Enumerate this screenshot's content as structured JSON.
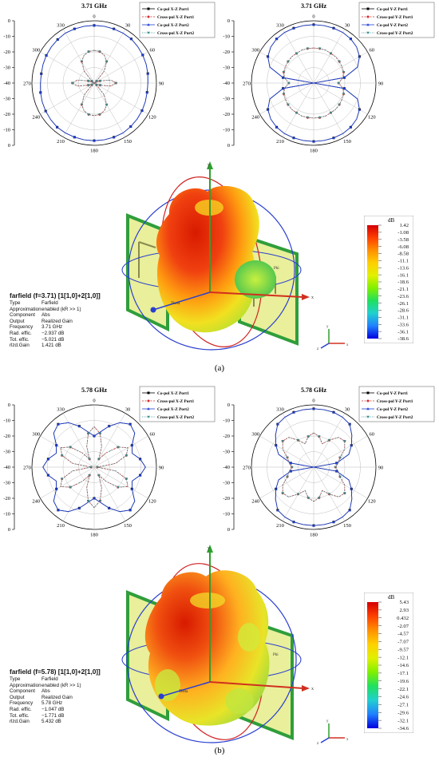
{
  "panels": [
    {
      "caption": "(a)",
      "polar_xz": {
        "title": "3.71 GHz",
        "legend": [
          "Co-pol X-Z Port1",
          "Cross-pol X-Z Port1",
          "Co-pol X-Z Port2",
          "Cross-pol X-Z Port2"
        ]
      },
      "polar_yz": {
        "title": "3.71 GHz",
        "legend": [
          "Co-pol Y-Z Port1",
          "Cross-pol Y-Z Port1",
          "Co-pol Y-Z Port2",
          "Cross-pol Y-Z Port2"
        ]
      },
      "farfield": {
        "header": "farfield (f=3.71) [1[1,0]+2[1,0]]",
        "rows": [
          {
            "k": "Type",
            "v": "Farfield"
          },
          {
            "k": "Approximation",
            "v": "enabled (kR >> 1)"
          },
          {
            "k": "Component",
            "v": "Abs"
          },
          {
            "k": "Output",
            "v": "Realized Gain"
          },
          {
            "k": "Frequency",
            "v": "3.71 GHz"
          },
          {
            "k": "Rad. effic.",
            "v": "−2.937 dB"
          },
          {
            "k": "Tot. effic.",
            "v": "−5.021 dB"
          },
          {
            "k": "rlzd.Gain",
            "v": "1.421 dB"
          }
        ],
        "colorbar_unit": "dB",
        "colorbar_ticks": [
          "1.42",
          "-1.08",
          "-3.58",
          "-6.08",
          "-8.58",
          "-11.1",
          "-13.6",
          "-16.1",
          "-18.6",
          "-21.1",
          "-23.6",
          "-26.1",
          "-28.6",
          "-31.1",
          "-33.6",
          "-36.1",
          "-38.6"
        ],
        "axis_labels": {
          "x": "x",
          "y": "y",
          "z": "z",
          "theta": "Theta",
          "phi": "Phi"
        }
      }
    },
    {
      "caption": "(b)",
      "polar_xz": {
        "title": "5.78 GHz",
        "legend": [
          "Co-pol X-Z Port1",
          "Cross-pol X-Z Port1",
          "Co-pol X-Z Port2",
          "Cross-pol X-Z Port2"
        ]
      },
      "polar_yz": {
        "title": "5.78 GHz",
        "legend": [
          "Co-pol Y-Z Port1",
          "Cross-pol Y-Z Port1",
          "Co-pol Y-Z Port2",
          "Cross-pol Y-Z Port2"
        ]
      },
      "farfield": {
        "header": "farfield (f=5.78) [1[1,0]+2[1,0]]",
        "rows": [
          {
            "k": "Type",
            "v": "Farfield"
          },
          {
            "k": "Approximation",
            "v": "enabled (kR >> 1)"
          },
          {
            "k": "Component",
            "v": "Abs"
          },
          {
            "k": "Output",
            "v": "Realized Gain"
          },
          {
            "k": "Frequency",
            "v": "5.78 GHz"
          },
          {
            "k": "Rad. effic.",
            "v": "−1.047 dB"
          },
          {
            "k": "Tot. effic.",
            "v": "−1.771 dB"
          },
          {
            "k": "rlzd.Gain",
            "v": "5.432 dB"
          }
        ],
        "colorbar_unit": "dB",
        "colorbar_ticks": [
          "5.43",
          "2.93",
          "0.432",
          "-2.07",
          "-4.57",
          "-7.07",
          "-9.57",
          "-12.1",
          "-14.6",
          "-17.1",
          "-19.6",
          "-22.1",
          "-24.6",
          "-27.1",
          "-29.6",
          "-32.1",
          "-34.6"
        ],
        "axis_labels": {
          "x": "x",
          "y": "y",
          "z": "z",
          "theta": "Theta",
          "phi": "Phi"
        }
      }
    }
  ],
  "polar_axis": {
    "r_ticks": [
      "0",
      "-10",
      "-20",
      "-30",
      "-40",
      "-30",
      "-20",
      "-10",
      "0"
    ],
    "angle_ticks": [
      "0",
      "30",
      "60",
      "90",
      "120",
      "150",
      "180",
      "210",
      "240",
      "270",
      "300",
      "330"
    ],
    "rlim": [
      -40,
      0
    ]
  },
  "colors": {
    "co_port1": "#000000",
    "cross_port1": "#d62728",
    "co_port2": "#1f3fd6",
    "cross_port2": "#3a8c8c",
    "palette": [
      "#d40000",
      "#ff4000",
      "#ff9000",
      "#ffd000",
      "#e0f000",
      "#80f000",
      "#20e060",
      "#20d0d0",
      "#2080ff",
      "#0000e0"
    ]
  },
  "chart_data": [
    {
      "type": "polar",
      "title": "3.71 GHz",
      "plane": "X-Z",
      "theta_deg": [
        0,
        10,
        20,
        30,
        40,
        50,
        60,
        70,
        80,
        90,
        100,
        110,
        120,
        130,
        140,
        150,
        160,
        170,
        180,
        190,
        200,
        210,
        220,
        230,
        240,
        250,
        260,
        270,
        280,
        290,
        300,
        310,
        320,
        330,
        340,
        350
      ],
      "series": [
        {
          "name": "Co-pol X-Z Port1",
          "values": [
            -3,
            -3,
            -3,
            -3,
            -3,
            -3.5,
            -4,
            -4.5,
            -5,
            -5.5,
            -5.5,
            -5,
            -4.5,
            -4,
            -3.5,
            -3,
            -3,
            -3,
            -3,
            -3,
            -3,
            -3,
            -3,
            -3.5,
            -4,
            -4.5,
            -5,
            -5.5,
            -5.5,
            -5,
            -4.5,
            -4,
            -3.5,
            -3,
            -3,
            -3
          ]
        },
        {
          "name": "Cross-pol X-Z Port1",
          "values": [
            -19,
            -19.5,
            -21,
            -24,
            -30,
            -38,
            -40,
            -36,
            -29,
            -26,
            -29,
            -36,
            -40,
            -38,
            -30,
            -24,
            -21,
            -19.5,
            -19,
            -19.5,
            -21,
            -24,
            -30,
            -38,
            -40,
            -36,
            -29,
            -26,
            -29,
            -36,
            -40,
            -38,
            -30,
            -24,
            -21,
            -19.5
          ]
        },
        {
          "name": "Co-pol X-Z Port2",
          "values": [
            -3,
            -3,
            -3,
            -3,
            -3,
            -3.5,
            -4,
            -4.5,
            -5,
            -5.5,
            -5.5,
            -5,
            -4.5,
            -4,
            -3.5,
            -3,
            -3,
            -3,
            -3,
            -3,
            -3,
            -3,
            -3,
            -3.5,
            -4,
            -4.5,
            -5,
            -5.5,
            -5.5,
            -5,
            -4.5,
            -4,
            -3.5,
            -3,
            -3,
            -3
          ]
        },
        {
          "name": "Cross-pol X-Z Port2",
          "values": [
            -19,
            -19.5,
            -21,
            -24,
            -30,
            -38,
            -40,
            -36,
            -29,
            -26,
            -29,
            -36,
            -40,
            -38,
            -30,
            -24,
            -21,
            -19.5,
            -19,
            -19.5,
            -21,
            -24,
            -30,
            -38,
            -40,
            -36,
            -29,
            -26,
            -29,
            -36,
            -40,
            -38,
            -30,
            -24,
            -21,
            -19.5
          ]
        }
      ]
    },
    {
      "type": "polar",
      "title": "3.71 GHz",
      "plane": "Y-Z",
      "theta_deg": [
        0,
        10,
        20,
        30,
        40,
        50,
        60,
        70,
        80,
        90,
        100,
        110,
        120,
        130,
        140,
        150,
        160,
        170,
        180,
        190,
        200,
        210,
        220,
        230,
        240,
        250,
        260,
        270,
        280,
        290,
        300,
        310,
        320,
        330,
        340,
        350
      ],
      "series": [
        {
          "name": "Co-pol Y-Z Port1",
          "values": [
            -2.5,
            -2.5,
            -2.5,
            -2.5,
            -3,
            -4,
            -6,
            -10,
            -20,
            -40,
            -20,
            -10,
            -6,
            -4,
            -3,
            -2.5,
            -2.5,
            -2.5,
            -2.5,
            -2.5,
            -2.5,
            -2.5,
            -3,
            -4,
            -6,
            -10,
            -20,
            -40,
            -20,
            -10,
            -6,
            -4,
            -3,
            -2.5,
            -2.5,
            -2.5
          ]
        },
        {
          "name": "Cross-pol Y-Z Port1",
          "values": [
            -17.5,
            -17.5,
            -17.5,
            -18,
            -18,
            -18.5,
            -19,
            -19.5,
            -21,
            -24,
            -21,
            -19.5,
            -19,
            -18.5,
            -18,
            -18,
            -17.5,
            -17.5,
            -17.5,
            -17.5,
            -17.5,
            -18,
            -18,
            -18.5,
            -19,
            -19.5,
            -21,
            -24,
            -21,
            -19.5,
            -19,
            -18.5,
            -18,
            -18,
            -17.5,
            -17.5
          ]
        },
        {
          "name": "Co-pol Y-Z Port2",
          "values": [
            -2.5,
            -2.5,
            -2.5,
            -2.5,
            -3,
            -4,
            -6,
            -10,
            -20,
            -40,
            -20,
            -10,
            -6,
            -4,
            -3,
            -2.5,
            -2.5,
            -2.5,
            -2.5,
            -2.5,
            -2.5,
            -2.5,
            -3,
            -4,
            -6,
            -10,
            -20,
            -40,
            -20,
            -10,
            -6,
            -4,
            -3,
            -2.5,
            -2.5,
            -2.5
          ]
        },
        {
          "name": "Cross-pol Y-Z Port2",
          "values": [
            -17.5,
            -17.5,
            -17.5,
            -18,
            -18,
            -18.5,
            -19,
            -19.5,
            -21,
            -24,
            -21,
            -19.5,
            -19,
            -18.5,
            -18,
            -18,
            -17.5,
            -17.5,
            -17.5,
            -17.5,
            -17.5,
            -18,
            -18,
            -18.5,
            -19,
            -19.5,
            -21,
            -24,
            -21,
            -19.5,
            -19,
            -18.5,
            -18,
            -18,
            -17.5,
            -17.5
          ]
        }
      ]
    },
    {
      "type": "polar",
      "title": "5.78 GHz",
      "plane": "X-Z",
      "theta_deg": [
        0,
        10,
        20,
        30,
        40,
        50,
        60,
        70,
        80,
        90,
        100,
        110,
        120,
        130,
        140,
        150,
        160,
        170,
        180,
        190,
        200,
        210,
        220,
        230,
        240,
        250,
        260,
        270,
        280,
        290,
        300,
        310,
        320,
        330,
        340,
        350
      ],
      "series": [
        {
          "name": "Co-pol X-Z Port1",
          "values": [
            -20,
            -17,
            -12,
            -7,
            -4,
            -6,
            -12,
            -14,
            -10,
            -7,
            -10,
            -14,
            -12,
            -6,
            -4,
            -7,
            -12,
            -17,
            -20,
            -17,
            -12,
            -7,
            -4,
            -6,
            -12,
            -14,
            -10,
            -7,
            -10,
            -14,
            -12,
            -6,
            -4,
            -7,
            -12,
            -17
          ]
        },
        {
          "name": "Cross-pol X-Z Port1",
          "values": [
            -14,
            -18,
            -26,
            -34,
            -28,
            -20,
            -15,
            -18,
            -26,
            -38,
            -26,
            -18,
            -15,
            -20,
            -28,
            -34,
            -26,
            -18,
            -14,
            -18,
            -26,
            -34,
            -28,
            -20,
            -15,
            -18,
            -26,
            -38,
            -26,
            -18,
            -15,
            -20,
            -28,
            -34,
            -26,
            -18
          ]
        },
        {
          "name": "Co-pol X-Z Port2",
          "values": [
            -20,
            -17,
            -12,
            -7,
            -4,
            -6,
            -12,
            -14,
            -10,
            -7,
            -10,
            -14,
            -12,
            -6,
            -4,
            -7,
            -12,
            -17,
            -20,
            -17,
            -12,
            -7,
            -4,
            -6,
            -12,
            -14,
            -10,
            -7,
            -10,
            -14,
            -12,
            -6,
            -4,
            -7,
            -12,
            -17
          ]
        },
        {
          "name": "Cross-pol X-Z Port2",
          "values": [
            -14,
            -18,
            -26,
            -34,
            -28,
            -20,
            -15,
            -18,
            -26,
            -38,
            -26,
            -18,
            -15,
            -20,
            -28,
            -34,
            -26,
            -18,
            -14,
            -18,
            -26,
            -34,
            -28,
            -20,
            -15,
            -18,
            -26,
            -38,
            -26,
            -18,
            -15,
            -20,
            -28,
            -34,
            -26,
            -18
          ]
        }
      ]
    },
    {
      "type": "polar",
      "title": "5.78 GHz",
      "plane": "Y-Z",
      "theta_deg": [
        0,
        10,
        20,
        30,
        40,
        50,
        60,
        70,
        80,
        90,
        100,
        110,
        120,
        130,
        140,
        150,
        160,
        170,
        180,
        190,
        200,
        210,
        220,
        230,
        240,
        250,
        260,
        270,
        280,
        290,
        300,
        310,
        320,
        330,
        340,
        350
      ],
      "series": [
        {
          "name": "Co-pol Y-Z Port1",
          "values": [
            -2.5,
            -2.5,
            -2.5,
            -3,
            -4,
            -8,
            -12,
            -16,
            -25,
            -40,
            -25,
            -16,
            -12,
            -8,
            -4,
            -3,
            -2.5,
            -2.5,
            -2.5,
            -2.5,
            -2.5,
            -3,
            -4,
            -8,
            -12,
            -16,
            -25,
            -40,
            -25,
            -16,
            -12,
            -8,
            -4,
            -3,
            -2.5,
            -2.5
          ]
        },
        {
          "name": "Cross-pol Y-Z Port1",
          "values": [
            -18,
            -20,
            -24,
            -20,
            -15,
            -14,
            -17,
            -22,
            -24,
            -26,
            -24,
            -22,
            -17,
            -14,
            -15,
            -20,
            -24,
            -20,
            -18,
            -20,
            -24,
            -20,
            -15,
            -14,
            -17,
            -22,
            -24,
            -26,
            -24,
            -22,
            -17,
            -14,
            -15,
            -20,
            -24,
            -20
          ]
        },
        {
          "name": "Co-pol Y-Z Port2",
          "values": [
            -2.5,
            -2.5,
            -2.5,
            -3,
            -4,
            -8,
            -12,
            -16,
            -25,
            -40,
            -25,
            -16,
            -12,
            -8,
            -4,
            -3,
            -2.5,
            -2.5,
            -2.5,
            -2.5,
            -2.5,
            -3,
            -4,
            -8,
            -12,
            -16,
            -25,
            -40,
            -25,
            -16,
            -12,
            -8,
            -4,
            -3,
            -2.5,
            -2.5
          ]
        },
        {
          "name": "Cross-pol Y-Z Port2",
          "values": [
            -18,
            -20,
            -24,
            -20,
            -15,
            -14,
            -17,
            -22,
            -24,
            -26,
            -24,
            -22,
            -17,
            -14,
            -15,
            -20,
            -24,
            -20,
            -18,
            -20,
            -24,
            -20,
            -15,
            -14,
            -17,
            -22,
            -24,
            -26,
            -24,
            -22,
            -17,
            -14,
            -15,
            -20,
            -24,
            -20
          ]
        }
      ]
    }
  ]
}
